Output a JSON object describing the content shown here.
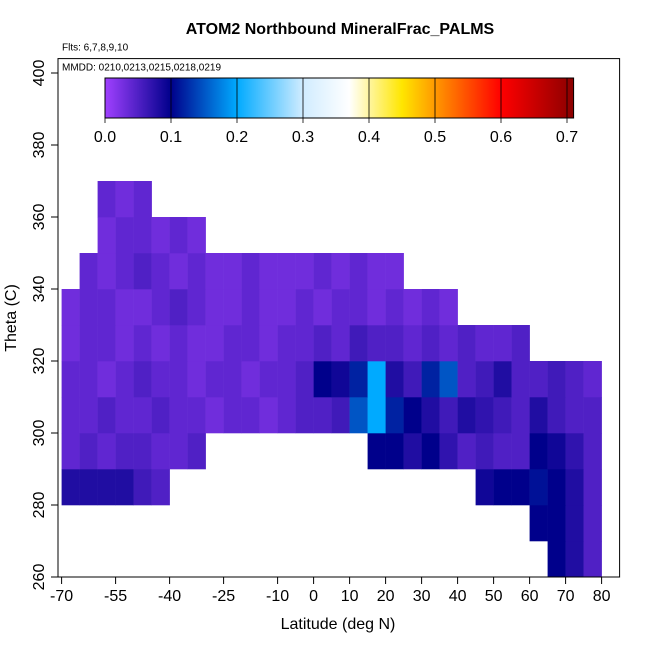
{
  "chart_data": {
    "type": "heatmap",
    "title": "ATOM2 Northbound MineralFrac_PALMS",
    "subtitle": "Flts: 6,7,8,9,10",
    "annotation": "MMDD: 0210,0213,0215,0218,0219",
    "x_label": "Latitude (deg N)",
    "y_label": "Theta (C)",
    "xlim": [
      -71,
      85
    ],
    "ylim": [
      260,
      404
    ],
    "xticks": [
      -70,
      -55,
      -40,
      -25,
      -10,
      0,
      10,
      20,
      30,
      40,
      50,
      60,
      70,
      80
    ],
    "yticks": [
      260,
      280,
      300,
      320,
      340,
      360,
      380,
      400
    ],
    "xbins": [
      -70,
      -65,
      -60,
      -55,
      -50,
      -45,
      -40,
      -35,
      -30,
      -25,
      -20,
      -15,
      -10,
      -5,
      0,
      5,
      10,
      15,
      20,
      25,
      30,
      35,
      40,
      45,
      50,
      55,
      60,
      65,
      70,
      75,
      80
    ],
    "ybins": [
      260,
      270,
      280,
      290,
      300,
      310,
      320,
      330,
      340,
      350,
      360,
      370
    ],
    "z": [
      [
        null,
        null,
        null,
        null,
        null,
        null,
        null,
        null,
        null,
        null,
        null,
        null,
        null,
        null,
        null,
        null,
        null,
        null,
        null,
        null,
        null,
        null,
        null,
        null,
        null,
        null,
        null,
        0.1,
        0.08,
        0.05
      ],
      [
        null,
        null,
        null,
        null,
        null,
        null,
        null,
        null,
        null,
        null,
        null,
        null,
        null,
        null,
        null,
        null,
        null,
        null,
        null,
        null,
        null,
        null,
        null,
        null,
        null,
        null,
        0.1,
        0.1,
        0.08,
        0.05
      ],
      [
        0.08,
        0.08,
        0.08,
        0.08,
        0.06,
        0.05,
        null,
        null,
        null,
        null,
        null,
        null,
        null,
        null,
        null,
        null,
        null,
        null,
        null,
        null,
        null,
        null,
        null,
        0.09,
        0.1,
        0.1,
        0.11,
        0.1,
        0.08,
        0.05
      ],
      [
        0.04,
        0.05,
        0.04,
        0.05,
        0.05,
        0.04,
        0.04,
        0.05,
        null,
        null,
        null,
        null,
        null,
        null,
        null,
        null,
        null,
        0.1,
        0.1,
        0.08,
        0.1,
        0.07,
        0.05,
        0.06,
        0.05,
        0.05,
        0.1,
        0.09,
        0.07,
        0.05
      ],
      [
        0.04,
        0.04,
        0.05,
        0.04,
        0.04,
        0.05,
        0.04,
        0.04,
        0.03,
        0.04,
        0.04,
        0.03,
        0.04,
        0.05,
        0.05,
        0.06,
        0.15,
        0.2,
        0.12,
        0.1,
        0.08,
        0.06,
        0.08,
        0.07,
        0.06,
        0.05,
        0.08,
        0.06,
        0.05,
        0.05
      ],
      [
        0.04,
        0.04,
        0.03,
        0.04,
        0.05,
        0.04,
        0.04,
        0.03,
        0.04,
        0.04,
        0.03,
        0.04,
        0.04,
        0.05,
        0.1,
        0.09,
        0.12,
        0.2,
        0.08,
        0.06,
        0.12,
        0.15,
        0.05,
        0.06,
        0.08,
        0.05,
        0.05,
        0.06,
        0.05,
        0.04
      ],
      [
        0.03,
        0.04,
        0.04,
        0.03,
        0.04,
        0.03,
        0.04,
        0.03,
        0.03,
        0.04,
        0.04,
        0.03,
        0.04,
        0.04,
        0.05,
        0.04,
        0.06,
        0.05,
        0.05,
        0.04,
        0.05,
        0.04,
        0.05,
        0.04,
        0.04,
        0.05,
        null,
        null,
        null,
        null
      ],
      [
        0.03,
        0.04,
        0.04,
        0.03,
        0.03,
        0.04,
        0.05,
        0.04,
        0.03,
        0.03,
        0.04,
        0.03,
        0.03,
        0.04,
        0.03,
        0.04,
        0.04,
        0.03,
        0.04,
        0.03,
        0.04,
        0.03,
        null,
        null,
        null,
        null,
        null,
        null,
        null,
        null
      ],
      [
        null,
        0.04,
        0.03,
        0.04,
        0.05,
        0.04,
        0.03,
        0.04,
        0.03,
        0.03,
        0.04,
        0.03,
        0.03,
        0.03,
        0.04,
        0.03,
        0.04,
        0.03,
        0.03,
        null,
        null,
        null,
        null,
        null,
        null,
        null,
        null,
        null,
        null,
        null
      ],
      [
        null,
        null,
        0.03,
        0.04,
        0.04,
        0.03,
        0.04,
        0.03,
        null,
        null,
        null,
        null,
        null,
        null,
        null,
        null,
        null,
        null,
        null,
        null,
        null,
        null,
        null,
        null,
        null,
        null,
        null,
        null,
        null,
        null
      ],
      [
        null,
        null,
        0.04,
        0.03,
        0.04,
        null,
        null,
        null,
        null,
        null,
        null,
        null,
        null,
        null,
        null,
        null,
        null,
        null,
        null,
        null,
        null,
        null,
        null,
        null,
        null,
        null,
        null,
        null,
        null,
        null
      ]
    ],
    "clim": [
      0,
      0.71
    ],
    "cticks": [
      {
        "value": 0,
        "label": "0.0"
      },
      0.1,
      0.2,
      0.3,
      0.4,
      0.5,
      0.6,
      0.7
    ],
    "colorscale": [
      [
        0,
        "#a040ff"
      ],
      [
        0.1,
        "#00008b"
      ],
      [
        0.2,
        "#00aaff"
      ],
      [
        0.3,
        "#d0ecff"
      ],
      [
        0.37,
        "#ffffff"
      ],
      [
        0.45,
        "#ffe600"
      ],
      [
        0.5,
        "#ff9900"
      ],
      [
        0.6,
        "#ff0000"
      ],
      [
        0.71,
        "#8b0000"
      ]
    ]
  }
}
